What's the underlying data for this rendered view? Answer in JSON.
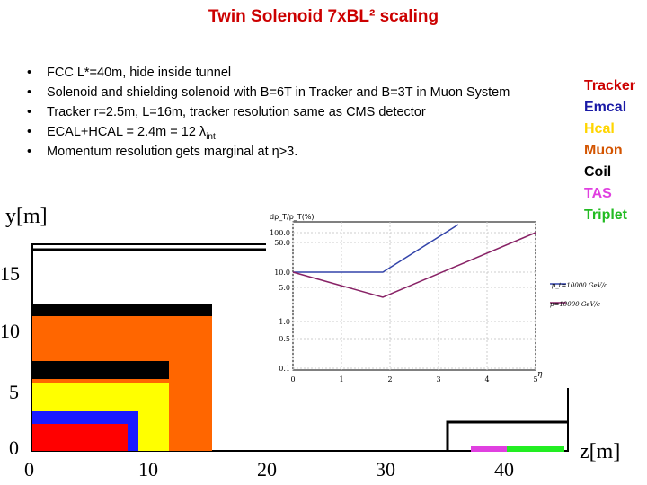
{
  "title": "Twin Solenoid 7xBL² scaling",
  "bullets": [
    "FCC L*=40m, hide inside tunnel",
    "Solenoid and shielding solenoid with B=6T in Tracker and B=3T in Muon System",
    "Tracker r=2.5m, L=16m, tracker resolution same as CMS detector",
    "ECAL+HCAL = 2.4m = 12 λ",
    "Momentum resolution gets marginal at η>3."
  ],
  "bullet_subscript": "int",
  "legend": [
    {
      "label": "Tracker",
      "color": "#cc0000"
    },
    {
      "label": "Emcal",
      "color": "#1a1aa6"
    },
    {
      "label": "Hcal",
      "color": "#ffd500"
    },
    {
      "label": "Muon",
      "color": "#d35400"
    },
    {
      "label": "Coil",
      "color": "#000000"
    },
    {
      "label": "TAS",
      "color": "#e040e0"
    },
    {
      "label": "Triplet",
      "color": "#22bb22"
    }
  ],
  "detector": {
    "y_axis_label": "y[m]",
    "z_axis_label": "z[m]",
    "y_ticks": [
      "0",
      "5",
      "10",
      "15"
    ],
    "z_ticks": [
      "0",
      "10",
      "20",
      "30",
      "40"
    ]
  },
  "inset": {
    "ylabel": "dp_T/p_T(%)",
    "xlabel": "η",
    "y_ticks": [
      "100.0",
      "50.0",
      "10.0",
      "5.0",
      "1.0",
      "0.5",
      "0.1"
    ],
    "x_ticks": [
      "0",
      "1",
      "2",
      "3",
      "4",
      "5"
    ],
    "legend": [
      {
        "label": "p_t=10000 GeV/c",
        "color": "#3344aa"
      },
      {
        "label": "p=10000 GeV/c",
        "color": "#882266"
      }
    ]
  }
}
